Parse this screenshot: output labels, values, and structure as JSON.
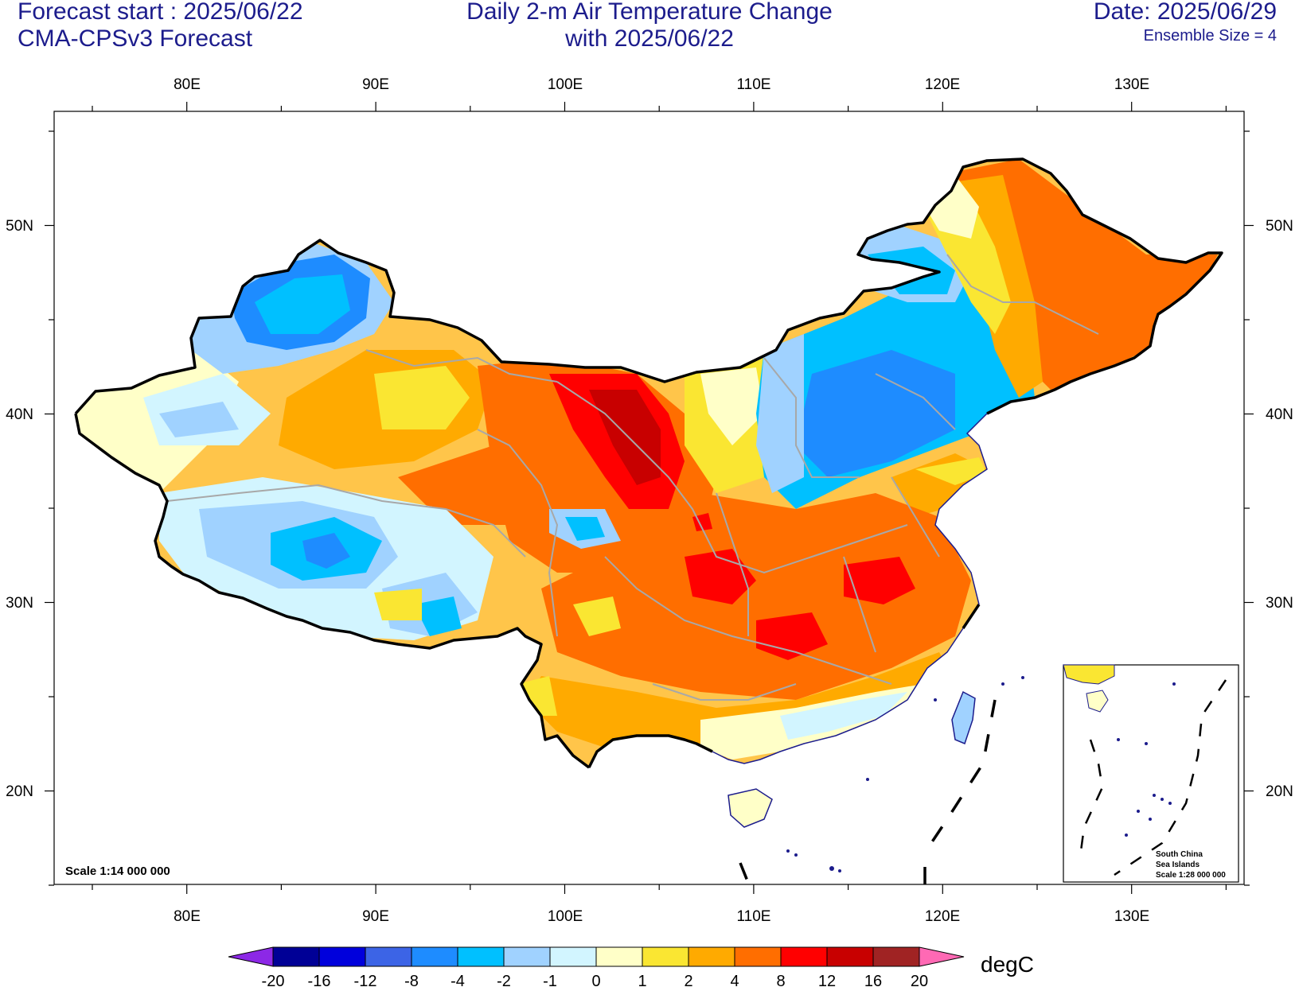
{
  "header": {
    "forecast_start": "Forecast start : 2025/06/22",
    "model": "CMA-CPSv3 Forecast",
    "title_line1": "Daily 2-m Air Temperature Change",
    "title_line2": "with 2025/06/22",
    "date": "Date: 2025/06/29",
    "ensemble": "Ensemble Size = 4"
  },
  "axes": {
    "lon_labels": [
      "80E",
      "90E",
      "100E",
      "110E",
      "120E",
      "130E"
    ],
    "lat_labels": [
      "50N",
      "40N",
      "30N",
      "20N"
    ]
  },
  "scale_label": "Scale 1:14 000 000",
  "inset": {
    "line1": "South China",
    "line2": "Sea Islands",
    "line3": "Scale 1:28 000 000"
  },
  "colorbar": {
    "labels": [
      "-20",
      "-16",
      "-12",
      "-8",
      "-4",
      "-2",
      "-1",
      "0",
      "1",
      "2",
      "4",
      "8",
      "12",
      "16",
      "20"
    ],
    "colors": [
      "#000096",
      "#0000dc",
      "#3c64e6",
      "#1e8cff",
      "#00c0ff",
      "#a0d2ff",
      "#d2f5ff",
      "#ffffc8",
      "#fae632",
      "#ffaa00",
      "#ff6e00",
      "#ff0000",
      "#c80000",
      "#a02323"
    ],
    "low_color": "#8c28e6",
    "high_color": "#ff69b4",
    "unit": "degC"
  }
}
